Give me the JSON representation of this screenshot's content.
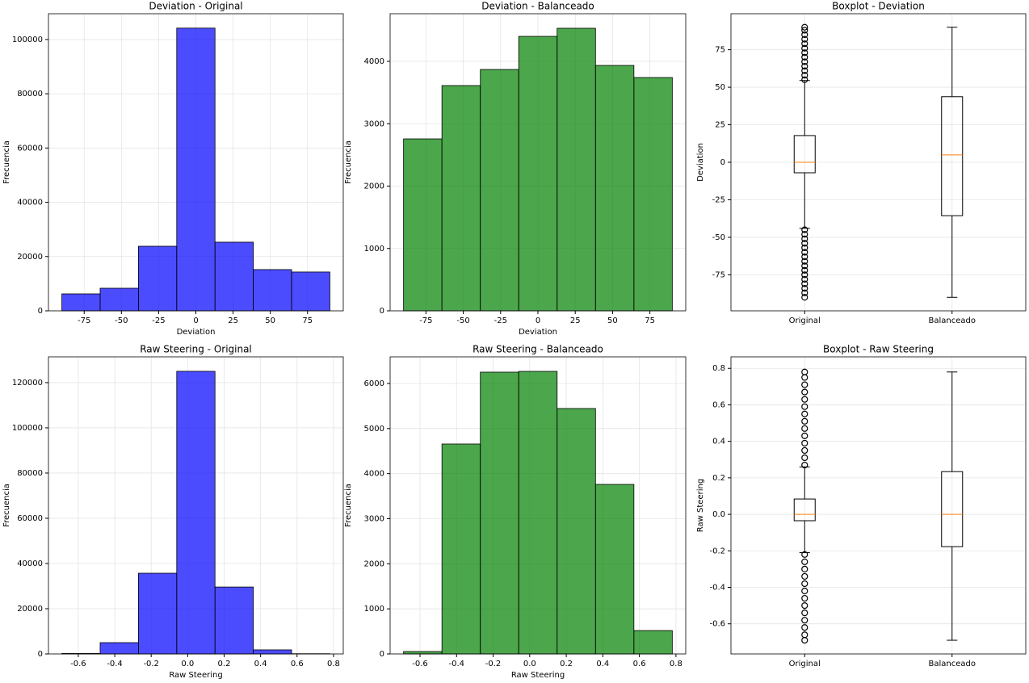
{
  "chart_data": [
    {
      "type": "histogram",
      "title": "Deviation - Original",
      "xlabel": "Deviation",
      "ylabel": "Frecuencia",
      "color": "#0000ff",
      "bins": [
        -90,
        -64.29,
        -38.57,
        -12.86,
        12.86,
        38.57,
        64.29,
        90
      ],
      "values": [
        6250,
        8330,
        23800,
        104200,
        25300,
        15200,
        14300
      ],
      "xlim": [
        -99,
        99
      ],
      "xticks": [
        -75,
        -50,
        -25,
        0,
        25,
        50,
        75
      ],
      "ylim": [
        0,
        109500
      ],
      "yticks": [
        0,
        20000,
        40000,
        60000,
        80000,
        100000
      ],
      "grid": true
    },
    {
      "type": "histogram",
      "title": "Deviation - Balanceado",
      "xlabel": "Deviation",
      "ylabel": "Frecuencia",
      "color": "#008000",
      "bins": [
        -90,
        -64.29,
        -38.57,
        -12.86,
        12.86,
        38.57,
        64.29,
        90
      ],
      "values": [
        2757,
        3612,
        3870,
        4401,
        4531,
        3935,
        3741
      ],
      "xlim": [
        -99,
        99
      ],
      "xticks": [
        -75,
        -50,
        -25,
        0,
        25,
        50,
        75
      ],
      "ylim": [
        0,
        4764
      ],
      "yticks": [
        0,
        1000,
        2000,
        3000,
        4000
      ],
      "grid": true
    },
    {
      "type": "boxplot",
      "title": "Boxplot - Deviation",
      "ylabel": "Deviation",
      "categories": [
        "Original",
        "Balanceado"
      ],
      "boxes": [
        {
          "whislo": -44,
          "q1": -7,
          "median": 0,
          "q3": 17.8,
          "whishi": 54.5,
          "fliers": [
            55,
            58,
            61,
            64,
            67,
            70,
            73,
            76,
            79,
            82,
            85,
            88,
            90,
            -45,
            -48,
            -51,
            -54,
            -57,
            -60,
            -63,
            -66,
            -69,
            -72,
            -75,
            -78,
            -81,
            -84,
            -87,
            -90
          ]
        },
        {
          "whislo": -90,
          "q1": -35.6,
          "median": 4.9,
          "q3": 43.7,
          "whishi": 90,
          "fliers": []
        }
      ],
      "ylim": [
        -99,
        99
      ],
      "yticks": [
        -75,
        -50,
        -25,
        0,
        25,
        50,
        75
      ],
      "grid": true
    },
    {
      "type": "histogram",
      "title": "Raw Steering - Original",
      "xlabel": "Raw Steering",
      "ylabel": "Frecuencia",
      "color": "#0000ff",
      "bins": [
        -0.69,
        -0.48,
        -0.27,
        -0.06,
        0.15,
        0.36,
        0.57,
        0.78
      ],
      "values": [
        200,
        5000,
        35700,
        125000,
        29600,
        1800,
        100
      ],
      "xlim": [
        -0.7635,
        0.8535
      ],
      "xticks": [
        -0.6,
        -0.4,
        -0.2,
        {
          "value": 0,
          "label": "0.0"
        },
        0.2,
        0.4,
        0.6,
        0.8
      ],
      "ylim": [
        0,
        131400
      ],
      "yticks": [
        0,
        20000,
        40000,
        60000,
        80000,
        100000,
        120000
      ],
      "grid": true
    },
    {
      "type": "histogram",
      "title": "Raw Steering - Balanceado",
      "xlabel": "Raw Steering",
      "ylabel": "Frecuencia",
      "color": "#008000",
      "bins": [
        -0.69,
        -0.48,
        -0.27,
        -0.06,
        0.15,
        0.36,
        0.57,
        0.78
      ],
      "values": [
        54,
        4657,
        6251,
        6269,
        5445,
        3761,
        519
      ],
      "xlim": [
        -0.7635,
        0.8535
      ],
      "xticks": [
        -0.6,
        -0.4,
        -0.2,
        {
          "value": 0,
          "label": "0.0"
        },
        0.2,
        0.4,
        0.6,
        0.8
      ],
      "ylim": [
        0,
        6591
      ],
      "yticks": [
        0,
        1000,
        2000,
        3000,
        4000,
        5000,
        6000
      ],
      "grid": true
    },
    {
      "type": "boxplot",
      "title": "Boxplot - Raw Steering",
      "ylabel": "Raw Steering",
      "categories": [
        "Original",
        "Balanceado"
      ],
      "boxes": [
        {
          "whislo": -0.21,
          "q1": -0.035,
          "median": 0,
          "q3": 0.084,
          "whishi": 0.26,
          "fliers": [
            0.27,
            0.31,
            0.35,
            0.39,
            0.43,
            0.47,
            0.51,
            0.55,
            0.59,
            0.63,
            0.67,
            0.71,
            0.75,
            0.78,
            -0.22,
            -0.26,
            -0.3,
            -0.34,
            -0.38,
            -0.42,
            -0.46,
            -0.5,
            -0.54,
            -0.58,
            -0.62,
            -0.66,
            -0.69
          ]
        },
        {
          "whislo": -0.69,
          "q1": -0.177,
          "median": 0,
          "q3": 0.234,
          "whishi": 0.78,
          "fliers": []
        }
      ],
      "ylim": [
        -0.765,
        0.863
      ],
      "yticks": [
        -0.6,
        -0.4,
        -0.2,
        {
          "value": 0,
          "label": "0.0"
        },
        0.2,
        0.4,
        0.6,
        0.8
      ],
      "grid": true
    }
  ]
}
